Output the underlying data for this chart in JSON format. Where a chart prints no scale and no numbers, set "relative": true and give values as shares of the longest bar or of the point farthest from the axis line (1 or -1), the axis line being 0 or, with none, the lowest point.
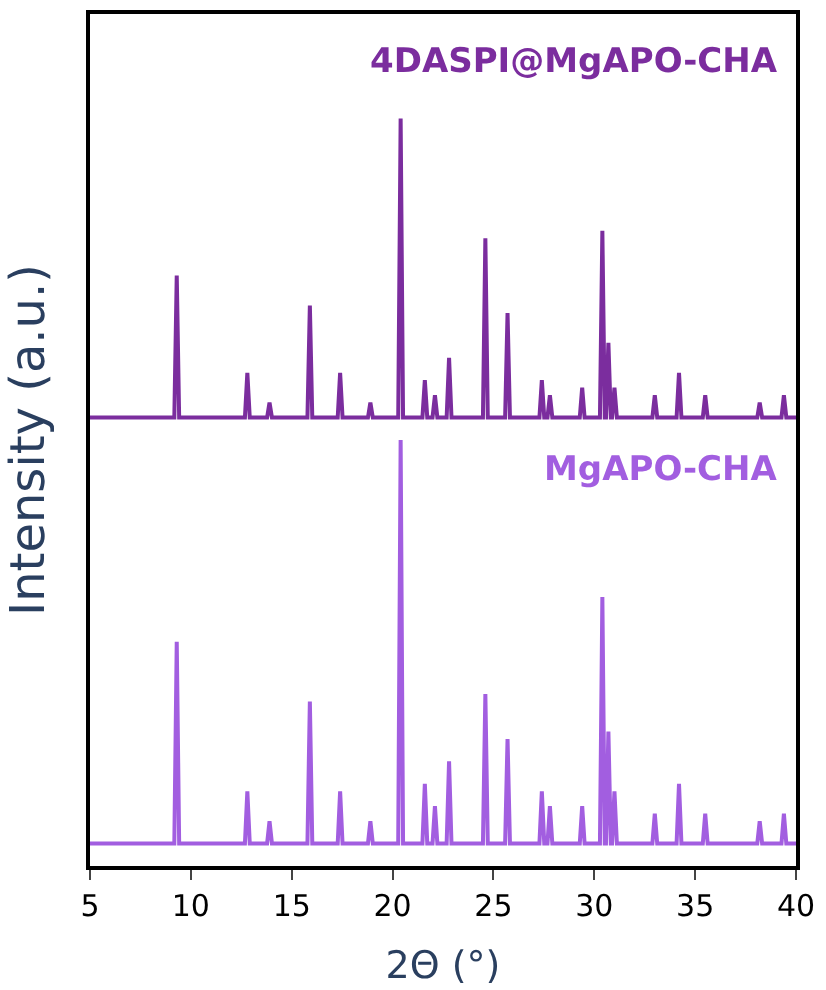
{
  "chart_data": {
    "type": "line",
    "relative": true,
    "xlabel": "2Θ (°)",
    "ylabel": "Intensity (a.u.)",
    "x": [
      5,
      9.18,
      9.3,
      9.42,
      12.68,
      12.8,
      12.92,
      13.78,
      13.9,
      14.02,
      15.78,
      15.9,
      16.02,
      17.28,
      17.4,
      17.52,
      18.78,
      18.9,
      19.02,
      20.28,
      20.4,
      20.52,
      21.48,
      21.6,
      21.72,
      21.98,
      22.1,
      22.22,
      22.68,
      22.8,
      22.92,
      24.48,
      24.6,
      24.72,
      25.58,
      25.7,
      25.82,
      27.28,
      27.4,
      27.52,
      27.68,
      27.8,
      27.92,
      29.28,
      29.4,
      29.52,
      30.28,
      30.4,
      30.52,
      30.58,
      30.7,
      30.82,
      30.88,
      31.0,
      31.12,
      32.88,
      33.0,
      33.12,
      34.08,
      34.2,
      34.32,
      35.38,
      35.5,
      35.62,
      38.08,
      38.2,
      38.32,
      39.28,
      39.4,
      39.52,
      40
    ],
    "xlim": [
      5,
      40
    ],
    "xticks": [
      5,
      10,
      15,
      20,
      25,
      30,
      35,
      40
    ],
    "legend": false,
    "tick_labels": "x",
    "series": [
      {
        "name": "4DASPI@MgAPO-CHA",
        "color": "#7b2d9e",
        "values": [
          0.6,
          0.6,
          0.79,
          0.6,
          0.6,
          0.66,
          0.6,
          0.6,
          0.62,
          0.6,
          0.6,
          0.75,
          0.6,
          0.6,
          0.66,
          0.6,
          0.6,
          0.62,
          0.6,
          0.6,
          1.0,
          0.6,
          0.6,
          0.65,
          0.6,
          0.6,
          0.63,
          0.6,
          0.6,
          0.68,
          0.6,
          0.6,
          0.84,
          0.6,
          0.6,
          0.74,
          0.6,
          0.6,
          0.65,
          0.6,
          0.6,
          0.63,
          0.6,
          0.6,
          0.64,
          0.6,
          0.6,
          0.85,
          0.6,
          0.6,
          0.7,
          0.6,
          0.6,
          0.64,
          0.6,
          0.6,
          0.63,
          0.6,
          0.6,
          0.66,
          0.6,
          0.6,
          0.63,
          0.6,
          0.6,
          0.62,
          0.6,
          0.6,
          0.63,
          0.6,
          0.6
        ]
      },
      {
        "name": "MgAPO-CHA",
        "color": "#a25ee0",
        "values": [
          0.03,
          0.03,
          0.3,
          0.03,
          0.03,
          0.1,
          0.03,
          0.03,
          0.06,
          0.03,
          0.03,
          0.22,
          0.03,
          0.03,
          0.1,
          0.03,
          0.03,
          0.06,
          0.03,
          0.03,
          0.57,
          0.03,
          0.03,
          0.11,
          0.03,
          0.03,
          0.08,
          0.03,
          0.03,
          0.14,
          0.03,
          0.03,
          0.23,
          0.03,
          0.03,
          0.17,
          0.03,
          0.03,
          0.1,
          0.03,
          0.03,
          0.08,
          0.03,
          0.03,
          0.08,
          0.03,
          0.03,
          0.36,
          0.03,
          0.03,
          0.18,
          0.03,
          0.03,
          0.1,
          0.03,
          0.03,
          0.07,
          0.03,
          0.03,
          0.11,
          0.03,
          0.03,
          0.07,
          0.03,
          0.03,
          0.06,
          0.03,
          0.03,
          0.07,
          0.03,
          0.03
        ]
      }
    ]
  }
}
